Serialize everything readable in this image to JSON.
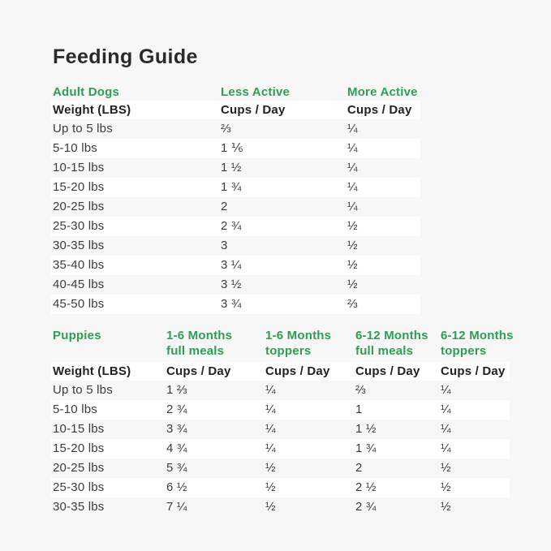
{
  "page": {
    "title": "Feeding Guide",
    "colors": {
      "background": "#f7f7f7",
      "stripe": "#ffffff",
      "accent_green": "#2f9e55",
      "text": "#3c3c3c"
    }
  },
  "adult_table": {
    "section_label": "Adult Dogs",
    "less_active_label": "Less Active",
    "more_active_label": "More Active",
    "weight_header": "Weight (LBS)",
    "cups_per_day_label": "Cups / Day",
    "rows": [
      {
        "weight": "Up to 5 lbs",
        "less_active": "⅔",
        "more_active": "¼"
      },
      {
        "weight": "5-10 lbs",
        "less_active": "1 ⅙",
        "more_active": "¼"
      },
      {
        "weight": "10-15 lbs",
        "less_active": "1 ½",
        "more_active": "¼"
      },
      {
        "weight": "15-20 lbs",
        "less_active": "1 ¾",
        "more_active": "¼"
      },
      {
        "weight": "20-25 lbs",
        "less_active": "2",
        "more_active": "¼"
      },
      {
        "weight": "25-30 lbs",
        "less_active": "2 ¾",
        "more_active": "½"
      },
      {
        "weight": "30-35 lbs",
        "less_active": "3",
        "more_active": "½"
      },
      {
        "weight": "35-40 lbs",
        "less_active": "3 ¼",
        "more_active": "½"
      },
      {
        "weight": "40-45 lbs",
        "less_active": "3 ½",
        "more_active": "½"
      },
      {
        "weight": "45-50 lbs",
        "less_active": "3 ¾",
        "more_active": "⅔"
      }
    ]
  },
  "puppy_table": {
    "section_label": "Puppies",
    "columns": [
      {
        "line1": "1-6 Months",
        "line2": "full meals"
      },
      {
        "line1": "1-6 Months",
        "line2": "toppers"
      },
      {
        "line1": "6-12 Months",
        "line2": "full meals"
      },
      {
        "line1": "6-12 Months",
        "line2": "toppers"
      }
    ],
    "weight_header": "Weight (LBS)",
    "cups_per_day_label": "Cups / Day",
    "rows": [
      {
        "weight": "Up to 5 lbs",
        "values": [
          "1 ⅔",
          "¼",
          "⅔",
          "¼"
        ]
      },
      {
        "weight": "5-10 lbs",
        "values": [
          "2 ¾",
          "¼",
          "1",
          "¼"
        ]
      },
      {
        "weight": "10-15 lbs",
        "values": [
          "3 ¾",
          "¼",
          "1 ½",
          "¼"
        ]
      },
      {
        "weight": "15-20 lbs",
        "values": [
          "4 ¾",
          "¼",
          "1 ¾",
          "¼"
        ]
      },
      {
        "weight": "20-25 lbs",
        "values": [
          "5 ¾",
          "½",
          "2",
          "½"
        ]
      },
      {
        "weight": "25-30 lbs",
        "values": [
          "6 ½",
          "½",
          "2 ½",
          "½"
        ]
      },
      {
        "weight": "30-35 lbs",
        "values": [
          "7 ¼",
          "½",
          "2 ¾",
          "½"
        ]
      }
    ]
  }
}
